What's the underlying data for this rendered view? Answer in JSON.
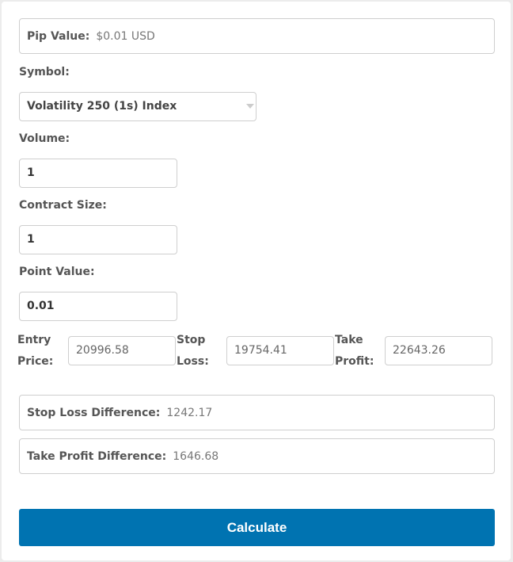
{
  "pip_value": {
    "label": "Pip Value:",
    "value": "$0.01 USD"
  },
  "symbol": {
    "label": "Symbol:",
    "selected": "Volatility 250 (1s) Index"
  },
  "volume": {
    "label": "Volume:",
    "value": "1"
  },
  "contract_size": {
    "label": "Contract Size:",
    "value": "1"
  },
  "point_value": {
    "label": "Point Value:",
    "value": "0.01"
  },
  "entry_price": {
    "label_line1": "Entry",
    "label_line2": "Price:",
    "value": "20996.58"
  },
  "stop_loss": {
    "label_line1": "Stop",
    "label_line2": "Loss:",
    "value": "19754.41"
  },
  "take_profit": {
    "label_line1": "Take",
    "label_line2": "Profit:",
    "value": "22643.26"
  },
  "stop_loss_difference": {
    "label": "Stop Loss Difference:",
    "value": "1242.17"
  },
  "take_profit_difference": {
    "label": "Take Profit Difference:",
    "value": "1646.68"
  },
  "calculate_label": "Calculate",
  "colors": {
    "button": "#0073b1"
  }
}
